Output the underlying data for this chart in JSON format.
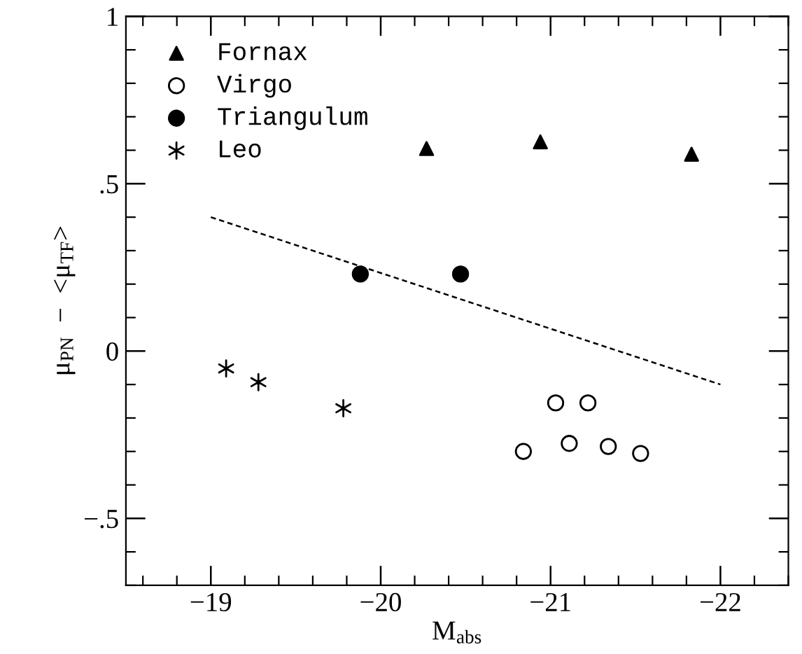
{
  "chart_data": {
    "type": "scatter",
    "xlabel": "M$_{abs}$",
    "ylabel": "μ$_{PN}$  −  <μ$_{TF}$>",
    "xlim": [
      -18.5,
      -22.4
    ],
    "ylim": [
      -0.7,
      1
    ],
    "xticks": [
      {
        "value": -19,
        "label": "−19"
      },
      {
        "value": -20,
        "label": "−20"
      },
      {
        "value": -21,
        "label": "−21"
      },
      {
        "value": -22,
        "label": "−22"
      }
    ],
    "yticks": [
      {
        "value": -0.5,
        "label": "−.5"
      },
      {
        "value": 0,
        "label": "0"
      },
      {
        "value": 0.5,
        "label": ".5"
      },
      {
        "value": 1,
        "label": "1"
      }
    ],
    "grid": false,
    "legend": "top left",
    "series": [
      {
        "name": "Fornax",
        "color": "#000000",
        "marker": "triangle",
        "x": [
          -20.27,
          -20.94,
          -21.83
        ],
        "values": [
          0.605,
          0.625,
          0.588
        ]
      },
      {
        "name": "Virgo",
        "color": "#ffffff",
        "marker": "circle",
        "x": [
          -20.84,
          -21.03,
          -21.11,
          -21.22,
          -21.34,
          -21.53
        ],
        "values": [
          -0.3,
          -0.155,
          -0.276,
          -0.155,
          -0.285,
          -0.306
        ]
      },
      {
        "name": "Triangulum",
        "color": "#000000",
        "marker": "circle",
        "x": [
          -19.88,
          -20.47
        ],
        "values": [
          0.23,
          0.23
        ]
      },
      {
        "name": "Leo",
        "color": "#000000",
        "marker": "cross",
        "x": [
          -19.09,
          -19.28,
          -19.78
        ],
        "values": [
          -0.052,
          -0.093,
          -0.171
        ]
      },
      {
        "type": "line",
        "color": "#000000",
        "line_style": "dashed",
        "x": [
          -19,
          -22
        ],
        "values": [
          0.4,
          -0.1
        ]
      }
    ]
  }
}
